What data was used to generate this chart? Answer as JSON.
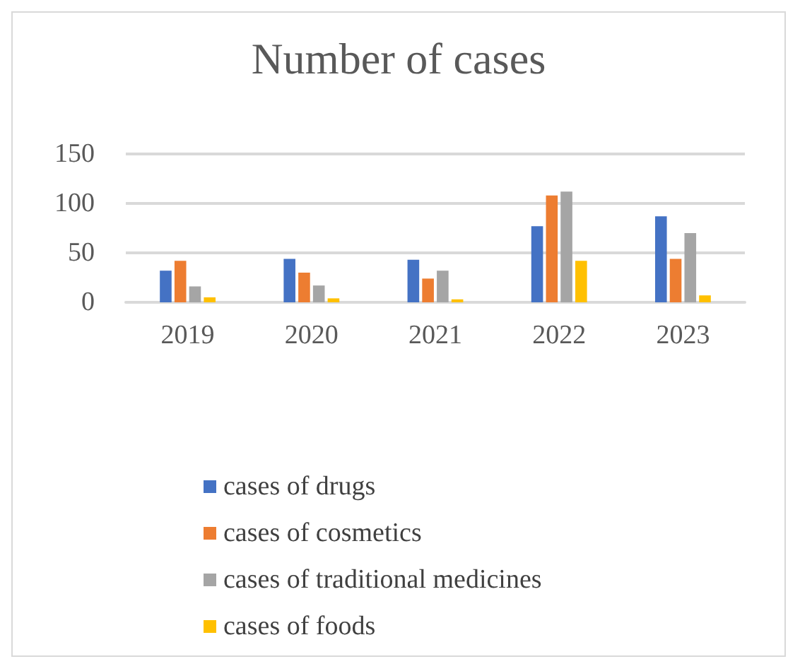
{
  "chart_data": {
    "type": "bar",
    "title": "Number of cases",
    "categories": [
      "2019",
      "2020",
      "2021",
      "2022",
      "2023"
    ],
    "series": [
      {
        "name": "cases of drugs",
        "color": "#4472c4",
        "values": [
          32,
          44,
          43,
          77,
          87
        ]
      },
      {
        "name": "cases of cosmetics",
        "color": "#ed7d31",
        "values": [
          42,
          30,
          24,
          108,
          44
        ]
      },
      {
        "name": "cases of traditional medicines",
        "color": "#a5a5a5",
        "values": [
          16,
          17,
          32,
          112,
          70
        ]
      },
      {
        "name": "cases of foods",
        "color": "#ffc000",
        "values": [
          5,
          4,
          3,
          42,
          7
        ]
      }
    ],
    "ylim": [
      0,
      150
    ],
    "yticks": [
      0,
      50,
      100,
      150
    ],
    "grid": "y",
    "legend": "bottom"
  }
}
